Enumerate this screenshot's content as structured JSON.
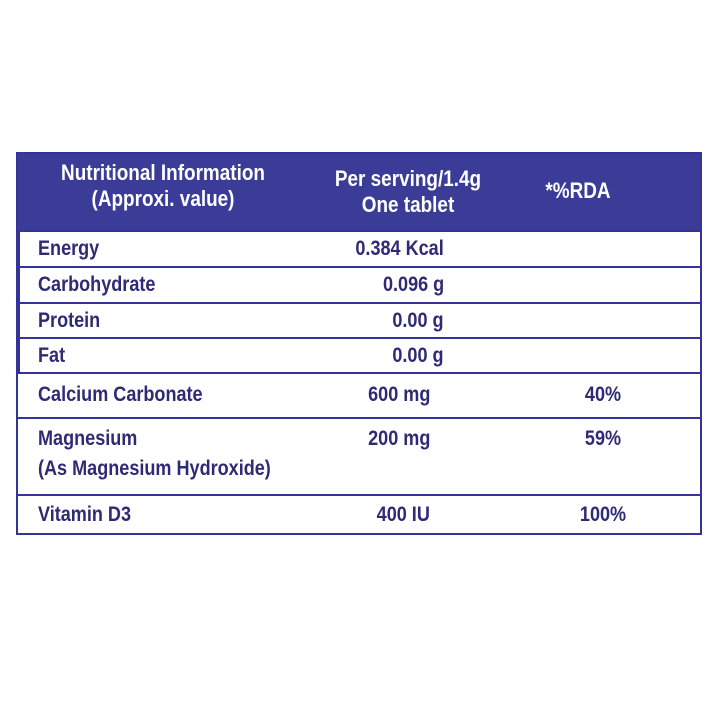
{
  "header": {
    "col1_line1": "Nutritional Information",
    "col1_line2": "(Approxi. value)",
    "col2_line1": "Per serving/1.4g",
    "col2_line2": "One tablet",
    "col3": "*%RDA"
  },
  "rows": [
    {
      "name": "Energy",
      "amount": "0.384 Kcal",
      "rda": ""
    },
    {
      "name": "Carbohydrate",
      "amount": "0.096 g",
      "rda": ""
    },
    {
      "name": "Protein",
      "amount": "0.00 g",
      "rda": ""
    },
    {
      "name": "Fat",
      "amount": "0.00 g",
      "rda": ""
    },
    {
      "name": "Calcium Carbonate",
      "amount": "600 mg",
      "rda": "40%"
    },
    {
      "name": "Magnesium",
      "name_line2": "(As Magnesium Hydroxide)",
      "amount": "200 mg",
      "rda": "59%"
    },
    {
      "name": "Vitamin D3",
      "amount": "400 IU",
      "rda": "100%"
    }
  ],
  "colors": {
    "header_bg": "#3b3c98",
    "border": "#333399",
    "text": "#2e2a75"
  }
}
